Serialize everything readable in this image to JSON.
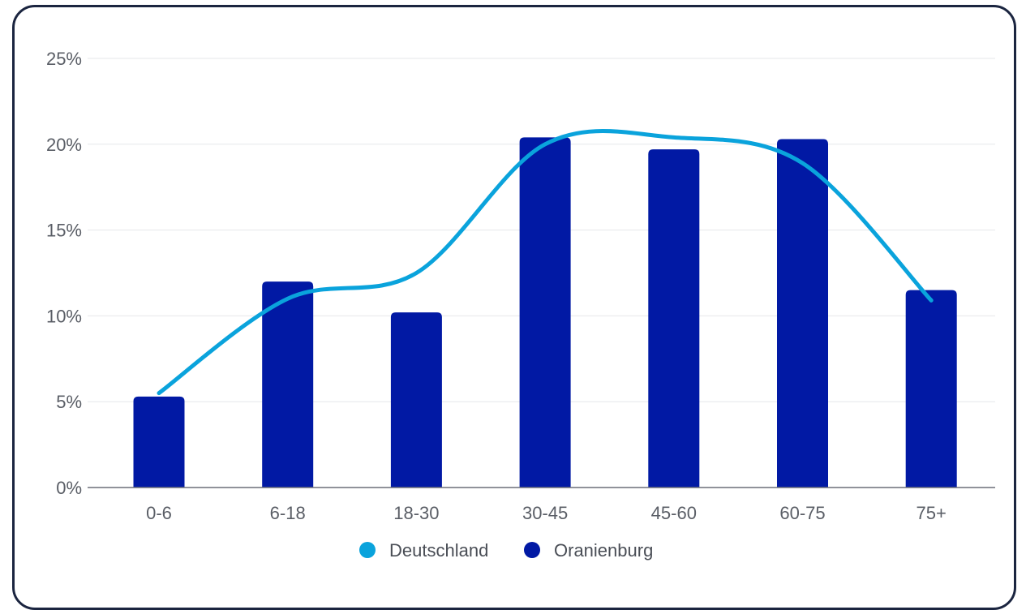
{
  "chart_data": {
    "type": "bar",
    "categories": [
      "0-6",
      "6-18",
      "18-30",
      "30-45",
      "45-60",
      "60-75",
      "75+"
    ],
    "series": [
      {
        "name": "Oranienburg",
        "type": "bar",
        "color": "#0119a4",
        "values": [
          5.3,
          12.0,
          10.2,
          20.4,
          19.7,
          20.3,
          11.5
        ]
      },
      {
        "name": "Deutschland",
        "type": "line",
        "smooth": true,
        "color": "#0aa3dc",
        "values": [
          5.5,
          11.0,
          12.5,
          20.0,
          20.4,
          18.9,
          10.9
        ]
      }
    ],
    "ylim": [
      0,
      25
    ],
    "yticks": [
      0,
      5,
      10,
      15,
      20,
      25
    ],
    "ytick_labels": [
      "0%",
      "5%",
      "10%",
      "15%",
      "20%",
      "25%"
    ],
    "grid": true,
    "legend_position": "bottom-center",
    "legend": [
      "Deutschland",
      "Oranienburg"
    ]
  }
}
